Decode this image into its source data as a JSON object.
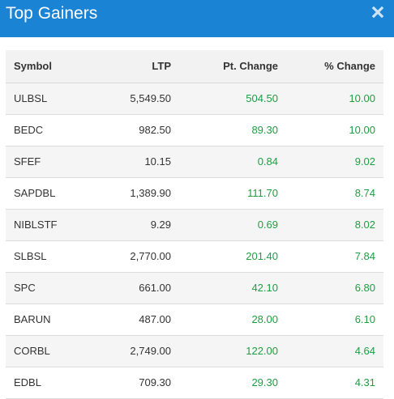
{
  "header": {
    "title": "Top Gainers",
    "close_icon": "close-icon"
  },
  "colors": {
    "header_bg": "#1a83d4",
    "positive": "#1e9e43"
  },
  "table": {
    "columns": [
      "Symbol",
      "LTP",
      "Pt. Change",
      "% Change"
    ],
    "rows": [
      {
        "symbol": "ULBSL",
        "ltp": "5,549.50",
        "pt_change": "504.50",
        "pct_change": "10.00"
      },
      {
        "symbol": "BEDC",
        "ltp": "982.50",
        "pt_change": "89.30",
        "pct_change": "10.00"
      },
      {
        "symbol": "SFEF",
        "ltp": "10.15",
        "pt_change": "0.84",
        "pct_change": "9.02"
      },
      {
        "symbol": "SAPDBL",
        "ltp": "1,389.90",
        "pt_change": "111.70",
        "pct_change": "8.74"
      },
      {
        "symbol": "NIBLSTF",
        "ltp": "9.29",
        "pt_change": "0.69",
        "pct_change": "8.02"
      },
      {
        "symbol": "SLBSL",
        "ltp": "2,770.00",
        "pt_change": "201.40",
        "pct_change": "7.84"
      },
      {
        "symbol": "SPC",
        "ltp": "661.00",
        "pt_change": "42.10",
        "pct_change": "6.80"
      },
      {
        "symbol": "BARUN",
        "ltp": "487.00",
        "pt_change": "28.00",
        "pct_change": "6.10"
      },
      {
        "symbol": "CORBL",
        "ltp": "2,749.00",
        "pt_change": "122.00",
        "pct_change": "4.64"
      },
      {
        "symbol": "EDBL",
        "ltp": "709.30",
        "pt_change": "29.30",
        "pct_change": "4.31"
      }
    ]
  }
}
